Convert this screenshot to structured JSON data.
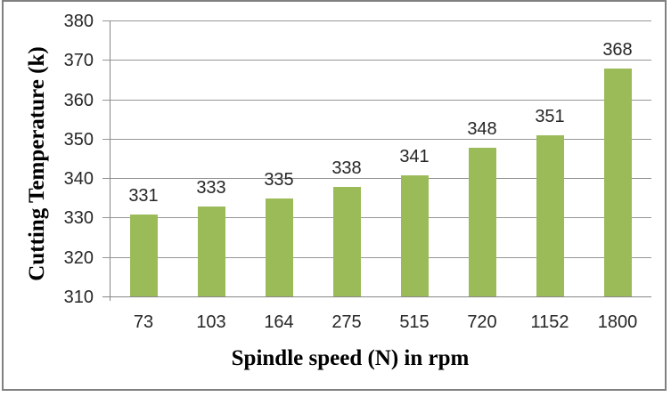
{
  "chart_data": {
    "type": "bar",
    "categories": [
      "73",
      "103",
      "164",
      "275",
      "515",
      "720",
      "1152",
      "1800"
    ],
    "values": [
      331,
      333,
      335,
      338,
      341,
      348,
      351,
      368
    ],
    "data_labels": [
      "331",
      "333",
      "335",
      "338",
      "341",
      "348",
      "351",
      "368"
    ],
    "title": "",
    "xlabel": "Spindle speed (N) in rpm",
    "ylabel": "Cutting Temperature (k)",
    "ylim": [
      310,
      380
    ],
    "ytick_step": 10,
    "yticks": [
      "310",
      "320",
      "330",
      "340",
      "350",
      "360",
      "370",
      "380"
    ],
    "grid": "horizontal-major",
    "legend": "none",
    "bar_color": "#9BBB59",
    "gridline_color": "#969696",
    "axis_color": "#878787",
    "border_color": "#808080",
    "background": "#FFFFFF"
  }
}
